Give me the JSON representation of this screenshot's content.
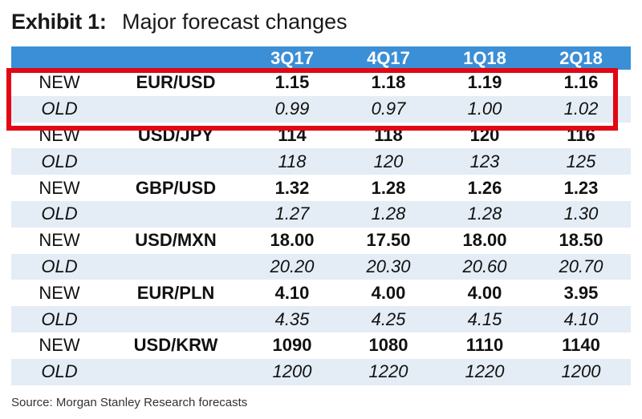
{
  "title": {
    "prefix": "Exhibit 1:",
    "main": "Major forecast changes"
  },
  "chart_data": {
    "type": "table",
    "title": "Exhibit 1: Major forecast changes",
    "columns": [
      "",
      "",
      "3Q17",
      "4Q17",
      "1Q18",
      "2Q18"
    ],
    "rows": [
      {
        "tag": "NEW",
        "pair": "EUR/USD",
        "values": [
          "1.15",
          "1.18",
          "1.19",
          "1.16"
        ]
      },
      {
        "tag": "OLD",
        "pair": "",
        "values": [
          "0.99",
          "0.97",
          "1.00",
          "1.02"
        ]
      },
      {
        "tag": "NEW",
        "pair": "USD/JPY",
        "values": [
          "114",
          "118",
          "120",
          "116"
        ]
      },
      {
        "tag": "OLD",
        "pair": "",
        "values": [
          "118",
          "120",
          "123",
          "125"
        ]
      },
      {
        "tag": "NEW",
        "pair": "GBP/USD",
        "values": [
          "1.32",
          "1.28",
          "1.26",
          "1.23"
        ]
      },
      {
        "tag": "OLD",
        "pair": "",
        "values": [
          "1.27",
          "1.28",
          "1.28",
          "1.30"
        ]
      },
      {
        "tag": "NEW",
        "pair": "USD/MXN",
        "values": [
          "18.00",
          "17.50",
          "18.00",
          "18.50"
        ]
      },
      {
        "tag": "OLD",
        "pair": "",
        "values": [
          "20.20",
          "20.30",
          "20.60",
          "20.70"
        ]
      },
      {
        "tag": "NEW",
        "pair": "EUR/PLN",
        "values": [
          "4.10",
          "4.00",
          "4.00",
          "3.95"
        ]
      },
      {
        "tag": "OLD",
        "pair": "",
        "values": [
          "4.35",
          "4.25",
          "4.15",
          "4.10"
        ]
      },
      {
        "tag": "NEW",
        "pair": "USD/KRW",
        "values": [
          "1090",
          "1080",
          "1110",
          "1140"
        ]
      },
      {
        "tag": "OLD",
        "pair": "",
        "values": [
          "1200",
          "1220",
          "1220",
          "1200"
        ]
      }
    ],
    "highlight": "EUR/USD rows"
  },
  "source": "Source: Morgan Stanley Research forecasts",
  "colors": {
    "header_bg": "#3b8fd6",
    "shaded_row": "#e4ecf5",
    "highlight_border": "#e30613"
  }
}
